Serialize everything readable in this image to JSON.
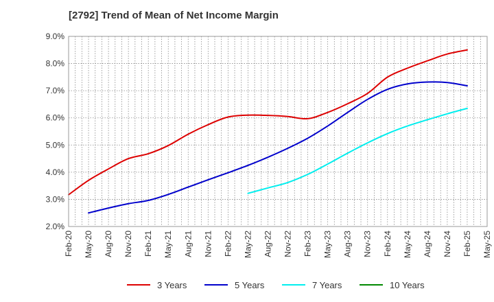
{
  "chart_data": {
    "type": "line",
    "title": "[2792]  Trend of Mean of Net Income Margin",
    "xlabel": "",
    "ylabel": "",
    "ylim": [
      2.0,
      9.0
    ],
    "y_ticks": [
      "2.0%",
      "3.0%",
      "4.0%",
      "5.0%",
      "6.0%",
      "7.0%",
      "8.0%",
      "9.0%"
    ],
    "x_ticks": [
      "Feb-20",
      "May-20",
      "Aug-20",
      "Nov-20",
      "Feb-21",
      "May-21",
      "Aug-21",
      "Nov-21",
      "Feb-22",
      "May-22",
      "Aug-22",
      "Nov-22",
      "Feb-23",
      "May-23",
      "Aug-23",
      "Nov-23",
      "Feb-24",
      "May-24",
      "Aug-24",
      "Nov-24",
      "Feb-25",
      "May-25"
    ],
    "grid": true,
    "legend_position": "bottom",
    "series": [
      {
        "name": "3 Years",
        "color": "#dd0000",
        "x": [
          "Feb-20",
          "May-20",
          "Aug-20",
          "Nov-20",
          "Feb-21",
          "May-21",
          "Aug-21",
          "Nov-21",
          "Feb-22",
          "May-22",
          "Aug-22",
          "Nov-22",
          "Feb-23",
          "May-23",
          "Aug-23",
          "Nov-23",
          "Feb-24",
          "May-24",
          "Aug-24",
          "Nov-24",
          "Feb-25"
        ],
        "values": [
          3.17,
          3.7,
          4.12,
          4.5,
          4.68,
          4.98,
          5.4,
          5.75,
          6.03,
          6.1,
          6.09,
          6.05,
          5.97,
          6.2,
          6.52,
          6.9,
          7.5,
          7.83,
          8.1,
          8.35,
          8.5
        ]
      },
      {
        "name": "5 Years",
        "color": "#0000cc",
        "x": [
          "May-20",
          "Aug-20",
          "Nov-20",
          "Feb-21",
          "May-21",
          "Aug-21",
          "Nov-21",
          "Feb-22",
          "May-22",
          "Aug-22",
          "Nov-22",
          "Feb-23",
          "May-23",
          "Aug-23",
          "Nov-23",
          "Feb-24",
          "May-24",
          "Aug-24",
          "Nov-24",
          "Feb-25"
        ],
        "values": [
          2.5,
          2.68,
          2.84,
          2.96,
          3.18,
          3.45,
          3.72,
          3.98,
          4.25,
          4.55,
          4.88,
          5.25,
          5.7,
          6.2,
          6.68,
          7.05,
          7.25,
          7.32,
          7.3,
          7.18
        ]
      },
      {
        "name": "7 Years",
        "color": "#00eeee",
        "x": [
          "May-22",
          "Aug-22",
          "Nov-22",
          "Feb-23",
          "May-23",
          "Aug-23",
          "Nov-23",
          "Feb-24",
          "May-24",
          "Aug-24",
          "Nov-24",
          "Feb-25"
        ],
        "values": [
          3.22,
          3.42,
          3.62,
          3.92,
          4.3,
          4.7,
          5.08,
          5.42,
          5.7,
          5.93,
          6.15,
          6.35
        ]
      },
      {
        "name": "10 Years",
        "color": "#008800",
        "x": [],
        "values": []
      }
    ]
  }
}
